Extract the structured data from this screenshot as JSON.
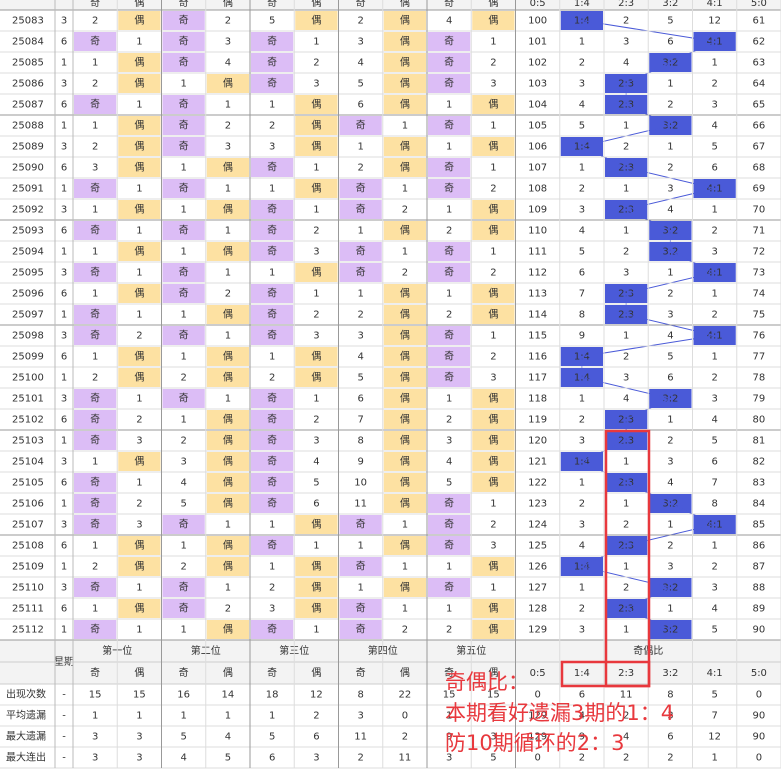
{
  "table": {
    "corner": "-",
    "weekday_label": "星期",
    "group_headers": [
      "第一位",
      "第二位",
      "第三位",
      "第四位",
      "第五位",
      "奇偶比"
    ],
    "sub_headers": [
      "奇",
      "偶",
      "奇",
      "偶",
      "奇",
      "偶",
      "奇",
      "偶",
      "奇",
      "偶",
      "0:5",
      "1:4",
      "2:3",
      "3:2",
      "4:1",
      "5:0"
    ],
    "rows": [
      {
        "period": "25083",
        "weekday": 3,
        "cells": [
          2,
          "偶",
          "奇",
          2,
          5,
          "偶",
          2,
          "偶",
          4,
          "偶",
          100,
          "1:4",
          2,
          5,
          12,
          61
        ]
      },
      {
        "period": "25084",
        "weekday": 6,
        "cells": [
          "奇",
          1,
          "奇",
          3,
          "奇",
          1,
          3,
          "偶",
          "奇",
          1,
          101,
          1,
          3,
          6,
          "4:1",
          62
        ]
      },
      {
        "period": "25085",
        "weekday": 1,
        "cells": [
          1,
          "偶",
          "奇",
          4,
          "奇",
          2,
          4,
          "偶",
          "奇",
          2,
          102,
          2,
          4,
          "3:2",
          1,
          63
        ]
      },
      {
        "period": "25086",
        "weekday": 3,
        "cells": [
          2,
          "偶",
          1,
          "偶",
          "奇",
          3,
          5,
          "偶",
          "奇",
          3,
          103,
          3,
          "2:3",
          1,
          2,
          64
        ]
      },
      {
        "period": "25087",
        "weekday": 6,
        "cells": [
          "奇",
          1,
          "奇",
          1,
          1,
          "偶",
          6,
          "偶",
          1,
          "偶",
          104,
          4,
          "2:3",
          2,
          3,
          65
        ]
      },
      {
        "period": "25088",
        "weekday": 1,
        "cells": [
          1,
          "偶",
          "奇",
          2,
          2,
          "偶",
          "奇",
          1,
          "奇",
          1,
          105,
          5,
          1,
          "3:2",
          4,
          66
        ]
      },
      {
        "period": "25089",
        "weekday": 3,
        "cells": [
          2,
          "偶",
          "奇",
          3,
          3,
          "偶",
          1,
          "偶",
          1,
          "偶",
          106,
          "1:4",
          2,
          1,
          5,
          67
        ]
      },
      {
        "period": "25090",
        "weekday": 6,
        "cells": [
          3,
          "偶",
          1,
          "偶",
          "奇",
          1,
          2,
          "偶",
          "奇",
          1,
          107,
          1,
          "2:3",
          2,
          6,
          68
        ]
      },
      {
        "period": "25091",
        "weekday": 1,
        "cells": [
          "奇",
          1,
          "奇",
          1,
          1,
          "偶",
          "奇",
          1,
          "奇",
          2,
          108,
          2,
          1,
          3,
          "4:1",
          69
        ]
      },
      {
        "period": "25092",
        "weekday": 3,
        "cells": [
          1,
          "偶",
          1,
          "偶",
          "奇",
          1,
          "奇",
          2,
          1,
          "偶",
          109,
          3,
          "2:3",
          4,
          1,
          70
        ]
      },
      {
        "period": "25093",
        "weekday": 6,
        "cells": [
          "奇",
          1,
          "奇",
          1,
          "奇",
          2,
          1,
          "偶",
          2,
          "偶",
          110,
          4,
          1,
          "3:2",
          2,
          71
        ]
      },
      {
        "period": "25094",
        "weekday": 1,
        "cells": [
          1,
          "偶",
          1,
          "偶",
          "奇",
          3,
          "奇",
          1,
          "奇",
          1,
          111,
          5,
          2,
          "3:2",
          3,
          72
        ]
      },
      {
        "period": "25095",
        "weekday": 3,
        "cells": [
          "奇",
          1,
          "奇",
          1,
          1,
          "偶",
          "奇",
          2,
          "奇",
          2,
          112,
          6,
          3,
          1,
          "4:1",
          73
        ]
      },
      {
        "period": "25096",
        "weekday": 6,
        "cells": [
          1,
          "偶",
          "奇",
          2,
          "奇",
          1,
          1,
          "偶",
          1,
          "偶",
          113,
          7,
          "2:3",
          2,
          1,
          74
        ]
      },
      {
        "period": "25097",
        "weekday": 1,
        "cells": [
          "奇",
          1,
          1,
          "偶",
          "奇",
          2,
          2,
          "偶",
          2,
          "偶",
          114,
          8,
          "2:3",
          3,
          2,
          75
        ]
      },
      {
        "period": "25098",
        "weekday": 3,
        "cells": [
          "奇",
          2,
          "奇",
          1,
          "奇",
          3,
          3,
          "偶",
          "奇",
          1,
          115,
          9,
          1,
          4,
          "4:1",
          76
        ]
      },
      {
        "period": "25099",
        "weekday": 6,
        "cells": [
          1,
          "偶",
          1,
          "偶",
          1,
          "偶",
          4,
          "偶",
          "奇",
          2,
          116,
          "1:4",
          2,
          5,
          1,
          77
        ]
      },
      {
        "period": "25100",
        "weekday": 1,
        "cells": [
          2,
          "偶",
          2,
          "偶",
          2,
          "偶",
          5,
          "偶",
          "奇",
          3,
          117,
          "1:4",
          3,
          6,
          2,
          78
        ]
      },
      {
        "period": "25101",
        "weekday": 3,
        "cells": [
          "奇",
          1,
          "奇",
          1,
          "奇",
          1,
          6,
          "偶",
          1,
          "偶",
          118,
          1,
          4,
          "3:2",
          3,
          79
        ]
      },
      {
        "period": "25102",
        "weekday": 6,
        "cells": [
          "奇",
          2,
          1,
          "偶",
          "奇",
          2,
          7,
          "偶",
          2,
          "偶",
          119,
          2,
          "2:3",
          1,
          4,
          80
        ]
      },
      {
        "period": "25103",
        "weekday": 1,
        "cells": [
          "奇",
          3,
          2,
          "偶",
          "奇",
          3,
          8,
          "偶",
          3,
          "偶",
          120,
          3,
          "2:3",
          2,
          5,
          81
        ]
      },
      {
        "period": "25104",
        "weekday": 3,
        "cells": [
          1,
          "偶",
          3,
          "偶",
          "奇",
          4,
          9,
          "偶",
          4,
          "偶",
          121,
          "1:4",
          1,
          3,
          6,
          82
        ]
      },
      {
        "period": "25105",
        "weekday": 6,
        "cells": [
          "奇",
          1,
          4,
          "偶",
          "奇",
          5,
          10,
          "偶",
          5,
          "偶",
          122,
          1,
          "2:3",
          4,
          7,
          83
        ]
      },
      {
        "period": "25106",
        "weekday": 1,
        "cells": [
          "奇",
          2,
          5,
          "偶",
          "奇",
          6,
          11,
          "偶",
          "奇",
          1,
          123,
          2,
          1,
          "3:2",
          8,
          84
        ]
      },
      {
        "period": "25107",
        "weekday": 3,
        "cells": [
          "奇",
          3,
          "奇",
          1,
          1,
          "偶",
          "奇",
          1,
          "奇",
          2,
          124,
          3,
          2,
          1,
          "4:1",
          85
        ]
      },
      {
        "period": "25108",
        "weekday": 6,
        "cells": [
          1,
          "偶",
          1,
          "偶",
          "奇",
          1,
          1,
          "偶",
          "奇",
          3,
          125,
          4,
          "2:3",
          2,
          1,
          86
        ]
      },
      {
        "period": "25109",
        "weekday": 1,
        "cells": [
          2,
          "偶",
          2,
          "偶",
          1,
          "偶",
          "奇",
          1,
          1,
          "偶",
          126,
          "1:4",
          1,
          3,
          2,
          87
        ]
      },
      {
        "period": "25110",
        "weekday": 3,
        "cells": [
          "奇",
          1,
          "奇",
          1,
          2,
          "偶",
          1,
          "偶",
          "奇",
          1,
          127,
          1,
          2,
          "3:2",
          3,
          88
        ]
      },
      {
        "period": "25111",
        "weekday": 6,
        "cells": [
          1,
          "偶",
          "奇",
          2,
          3,
          "偶",
          "奇",
          1,
          1,
          "偶",
          128,
          2,
          "2:3",
          1,
          4,
          89
        ]
      },
      {
        "period": "25112",
        "weekday": 1,
        "cells": [
          "奇",
          1,
          1,
          "偶",
          "奇",
          1,
          "奇",
          2,
          2,
          "偶",
          129,
          3,
          1,
          "3:2",
          5,
          90
        ]
      }
    ],
    "stats": [
      {
        "label": "出现次数",
        "dash": "-",
        "values": [
          15,
          15,
          16,
          14,
          18,
          12,
          8,
          22,
          15,
          15,
          0,
          6,
          11,
          8,
          5,
          0
        ]
      },
      {
        "label": "平均遗漏",
        "dash": "-",
        "values": [
          1,
          1,
          1,
          1,
          1,
          2,
          3,
          0,
          1,
          1,
          129,
          4,
          2,
          3,
          7,
          90
        ]
      },
      {
        "label": "最大遗漏",
        "dash": "-",
        "values": [
          3,
          3,
          5,
          4,
          5,
          6,
          11,
          2,
          9,
          3,
          129,
          9,
          4,
          6,
          12,
          90
        ]
      },
      {
        "label": "最大连出",
        "dash": "-",
        "values": [
          3,
          3,
          4,
          5,
          6,
          3,
          2,
          11,
          3,
          5,
          0,
          2,
          2,
          2,
          1,
          0
        ]
      }
    ]
  },
  "annotation": {
    "lines": [
      "奇偶比：",
      "本期看好遗漏3期的1：4",
      "防10期循环的2：3"
    ]
  }
}
